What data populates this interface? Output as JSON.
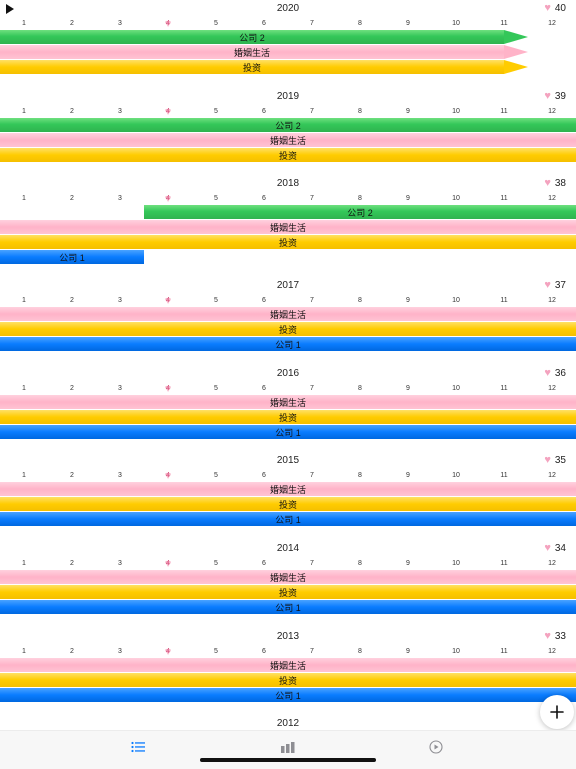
{
  "months": [
    "1",
    "2",
    "3",
    "4",
    "5",
    "6",
    "7",
    "8",
    "9",
    "10",
    "11",
    "12"
  ],
  "current_month": "4",
  "years": [
    {
      "year": "2020",
      "age": "40",
      "bars": [
        {
          "label": "公司 2",
          "color": "green",
          "start": 1,
          "end": 12,
          "arrow": true
        },
        {
          "label": "婚姻生活",
          "color": "pink",
          "start": 1,
          "end": 12,
          "arrow": true
        },
        {
          "label": "投资",
          "color": "yellow",
          "start": 1,
          "end": 12,
          "arrow": true
        }
      ]
    },
    {
      "year": "2019",
      "age": "39",
      "bars": [
        {
          "label": "公司 2",
          "color": "green",
          "start": 1,
          "end": 12
        },
        {
          "label": "婚姻生活",
          "color": "pink",
          "start": 1,
          "end": 12
        },
        {
          "label": "投资",
          "color": "yellow",
          "start": 1,
          "end": 12
        }
      ]
    },
    {
      "year": "2018",
      "age": "38",
      "bars": [
        {
          "label": "公司 2",
          "color": "green",
          "start": 4,
          "end": 12
        },
        {
          "label": "婚姻生活",
          "color": "pink",
          "start": 1,
          "end": 12
        },
        {
          "label": "投资",
          "color": "yellow",
          "start": 1,
          "end": 12
        },
        {
          "label": "公司 1",
          "color": "blue",
          "start": 1,
          "end": 3
        }
      ]
    },
    {
      "year": "2017",
      "age": "37",
      "bars": [
        {
          "label": "婚姻生活",
          "color": "pink",
          "start": 1,
          "end": 12
        },
        {
          "label": "投资",
          "color": "yellow",
          "start": 1,
          "end": 12
        },
        {
          "label": "公司 1",
          "color": "blue",
          "start": 1,
          "end": 12
        }
      ]
    },
    {
      "year": "2016",
      "age": "36",
      "bars": [
        {
          "label": "婚姻生活",
          "color": "pink",
          "start": 1,
          "end": 12
        },
        {
          "label": "投资",
          "color": "yellow",
          "start": 1,
          "end": 12
        },
        {
          "label": "公司 1",
          "color": "blue",
          "start": 1,
          "end": 12
        }
      ]
    },
    {
      "year": "2015",
      "age": "35",
      "bars": [
        {
          "label": "婚姻生活",
          "color": "pink",
          "start": 1,
          "end": 12
        },
        {
          "label": "投资",
          "color": "yellow",
          "start": 1,
          "end": 12
        },
        {
          "label": "公司 1",
          "color": "blue",
          "start": 1,
          "end": 12
        }
      ]
    },
    {
      "year": "2014",
      "age": "34",
      "bars": [
        {
          "label": "婚姻生活",
          "color": "pink",
          "start": 1,
          "end": 12
        },
        {
          "label": "投资",
          "color": "yellow",
          "start": 1,
          "end": 12
        },
        {
          "label": "公司 1",
          "color": "blue",
          "start": 1,
          "end": 12
        }
      ]
    },
    {
      "year": "2013",
      "age": "33",
      "bars": [
        {
          "label": "婚姻生活",
          "color": "pink",
          "start": 1,
          "end": 12
        },
        {
          "label": "投资",
          "color": "yellow",
          "start": 1,
          "end": 12
        },
        {
          "label": "公司 1",
          "color": "blue",
          "start": 1,
          "end": 12
        }
      ]
    },
    {
      "year": "2012",
      "age": "",
      "bars": []
    }
  ],
  "icons": {
    "play": "play-icon",
    "heart": "heart-icon",
    "add": "plus-icon",
    "tab_list": "list-icon",
    "tab_chart": "bar-chart-icon",
    "tab_play": "play-circle-icon"
  },
  "colors": {
    "accent": "#0a7cff",
    "green": "#34c759",
    "pink": "#ffb3c8",
    "yellow": "#ffcc00",
    "blue": "#0a7cff",
    "heart": "#f4a3bf"
  }
}
